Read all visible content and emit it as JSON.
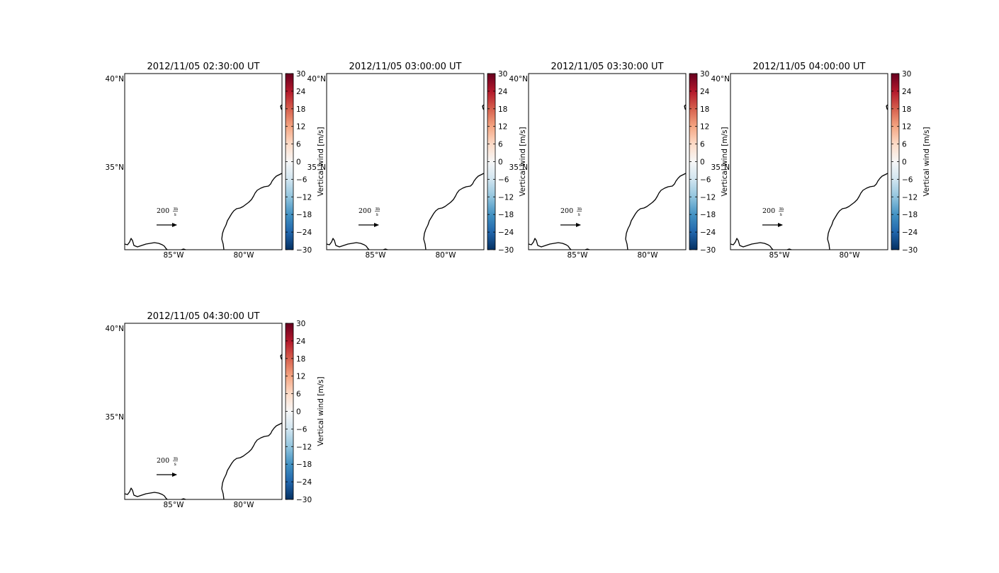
{
  "figure": {
    "panels": [
      {
        "title": "2012/11/05 02:30:00 UT"
      },
      {
        "title": "2012/11/05 03:00:00 UT"
      },
      {
        "title": "2012/11/05 03:30:00 UT"
      },
      {
        "title": "2012/11/05 04:00:00 UT"
      },
      {
        "title": "2012/11/05 04:30:00 UT"
      }
    ],
    "lat_labels": [
      "40°N",
      "35°N"
    ],
    "lon_labels": [
      "85°W",
      "80°W"
    ],
    "reference_vector": {
      "value": "200",
      "unit_numerator": "m",
      "unit_denominator": "s"
    },
    "colorbar": {
      "label": "Vertical wind [m/s]",
      "ticks": [
        "30",
        "24",
        "18",
        "12",
        "6",
        "0",
        "−6",
        "−12",
        "−18",
        "−24",
        "−30"
      ],
      "range": [
        -30,
        30
      ],
      "colormap": "RdBu_r",
      "colors": [
        "#053061",
        "#2166ac",
        "#4393c3",
        "#92c5de",
        "#d1e5f0",
        "#f7f7f7",
        "#fddbc7",
        "#f4a582",
        "#d6604d",
        "#b2182b",
        "#67001f"
      ]
    }
  }
}
